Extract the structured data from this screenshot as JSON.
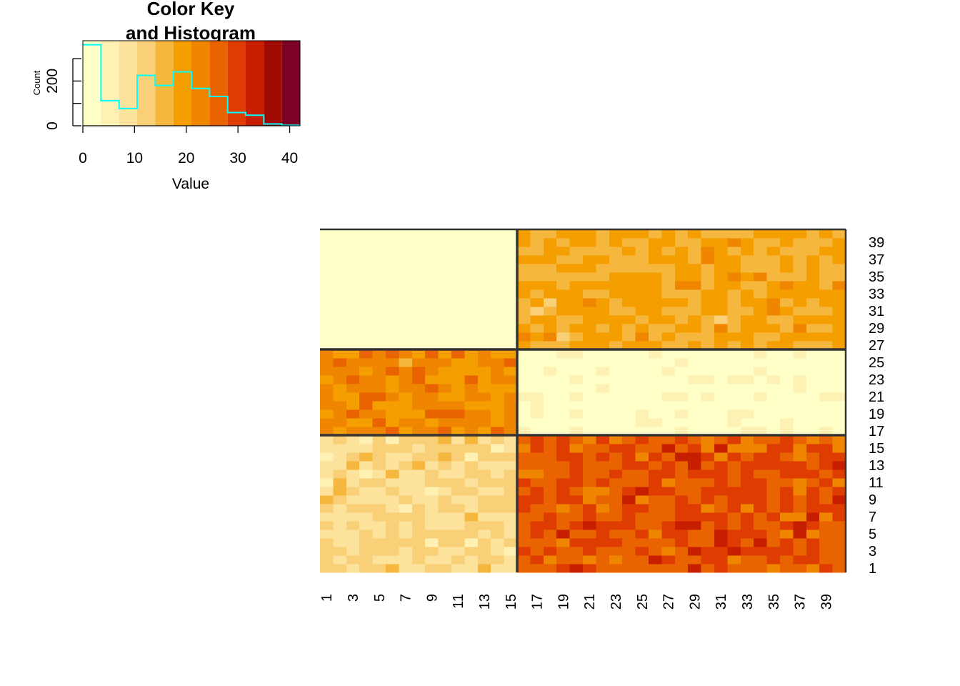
{
  "chart_data": [
    {
      "type": "bar",
      "title": "Color Key\nand Histogram",
      "title_lines": [
        "Color Key",
        "and Histogram"
      ],
      "xlabel": "Value",
      "ylabel": "Count",
      "xlim": [
        0,
        42
      ],
      "ylim": [
        0,
        380
      ],
      "x_ticks": [
        0,
        10,
        20,
        30,
        40
      ],
      "y_ticks": [
        0,
        100,
        200,
        300
      ],
      "y_tick_labels": [
        "0",
        "",
        "200",
        ""
      ],
      "color_breaks": [
        0,
        3.5,
        7,
        10.5,
        14,
        17.5,
        21,
        24.5,
        28,
        31.5,
        35,
        38.5,
        42
      ],
      "color_key": [
        "#FFFFC8",
        "#FFF0B4",
        "#FCE29B",
        "#F9CF78",
        "#F6B73E",
        "#F59E00",
        "#F08600",
        "#E96400",
        "#DE3C00",
        "#C81E00",
        "#A10A00",
        "#7D0025"
      ],
      "histogram_bins": [
        {
          "x0": 0,
          "x1": 3.5,
          "count": 362
        },
        {
          "x0": 3.5,
          "x1": 7,
          "count": 112
        },
        {
          "x0": 7,
          "x1": 10.5,
          "count": 77
        },
        {
          "x0": 10.5,
          "x1": 14,
          "count": 225
        },
        {
          "x0": 14,
          "x1": 17.5,
          "count": 180
        },
        {
          "x0": 17.5,
          "x1": 21,
          "count": 241
        },
        {
          "x0": 21,
          "x1": 24.5,
          "count": 167
        },
        {
          "x0": 24.5,
          "x1": 28,
          "count": 131
        },
        {
          "x0": 28,
          "x1": 31.5,
          "count": 59
        },
        {
          "x0": 31.5,
          "x1": 35,
          "count": 47
        },
        {
          "x0": 35,
          "x1": 38.5,
          "count": 8
        },
        {
          "x0": 38.5,
          "x1": 42,
          "count": 2
        }
      ],
      "histogram_color": "#00FFFF"
    },
    {
      "type": "heatmap",
      "rows": [
        1,
        2,
        3,
        4,
        5,
        6,
        7,
        8,
        9,
        10,
        11,
        12,
        13,
        14,
        15,
        16,
        17,
        18,
        19,
        20,
        21,
        22,
        23,
        24,
        25,
        26,
        27,
        28,
        29,
        30,
        31,
        32,
        33,
        34,
        35,
        36,
        37,
        38,
        39,
        40
      ],
      "cols": [
        1,
        2,
        3,
        4,
        5,
        6,
        7,
        8,
        9,
        10,
        11,
        12,
        13,
        14,
        15,
        16,
        17,
        18,
        19,
        20,
        21,
        22,
        23,
        24,
        25,
        26,
        27,
        28,
        29,
        30,
        31,
        32,
        33,
        34,
        35,
        36,
        37,
        38,
        39,
        40
      ],
      "row_tick_labels": [
        "1",
        "3",
        "5",
        "7",
        "9",
        "11",
        "13",
        "15",
        "17",
        "19",
        "21",
        "23",
        "25",
        "27",
        "29",
        "31",
        "33",
        "35",
        "37",
        "39"
      ],
      "col_tick_labels": [
        "1",
        "3",
        "5",
        "7",
        "9",
        "11",
        "13",
        "15",
        "17",
        "19",
        "21",
        "23",
        "25",
        "27",
        "29",
        "31",
        "33",
        "35",
        "37",
        "39"
      ],
      "separator_after_col": 15,
      "separators_after_row": [
        16,
        26
      ],
      "blocks": [
        {
          "rows": [
            1,
            16
          ],
          "cols": [
            1,
            15
          ],
          "mean_level": 2.6,
          "spread": 1.0
        },
        {
          "rows": [
            1,
            16
          ],
          "cols": [
            16,
            40
          ],
          "mean_level": 7.4,
          "spread": 1.2
        },
        {
          "rows": [
            17,
            26
          ],
          "cols": [
            1,
            15
          ],
          "mean_level": 5.8,
          "spread": 1.0
        },
        {
          "rows": [
            17,
            26
          ],
          "cols": [
            16,
            40
          ],
          "mean_level": 0.3,
          "spread": 0.4
        },
        {
          "rows": [
            27,
            40
          ],
          "cols": [
            1,
            15
          ],
          "mean_level": 0.0,
          "spread": 0.0
        },
        {
          "rows": [
            27,
            40
          ],
          "cols": [
            16,
            40
          ],
          "mean_level": 4.6,
          "spread": 1.0
        }
      ],
      "palette_ref": "color_key"
    }
  ]
}
